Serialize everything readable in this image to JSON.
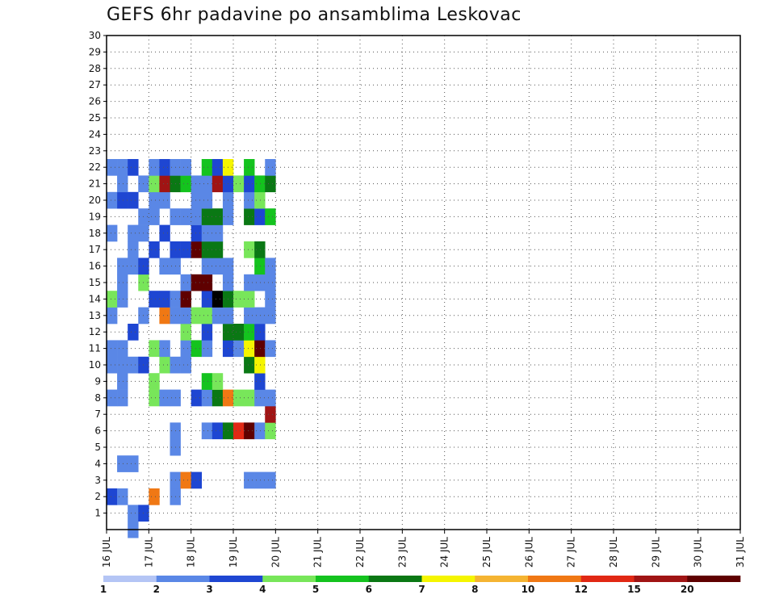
{
  "chart_data": {
    "type": "heatmap",
    "title": "GEFS 6hr padavine po ansamblima Leskovac",
    "xlabel": "",
    "ylabel": "",
    "x_ticks": [
      "16 JUL",
      "17 JUL",
      "18 JUL",
      "19 JUL",
      "20 JUL",
      "21 JUL",
      "22 JUL",
      "23 JUL",
      "24 JUL",
      "25 JUL",
      "26 JUL",
      "27 JUL",
      "28 JUL",
      "29 JUL",
      "30 JUL",
      "31 JUL"
    ],
    "x_range": [
      0,
      60
    ],
    "y_ticks": [
      1,
      2,
      3,
      4,
      5,
      6,
      7,
      8,
      9,
      10,
      11,
      12,
      13,
      14,
      15,
      16,
      17,
      18,
      19,
      20,
      21,
      22,
      23,
      24,
      25,
      26,
      27,
      28,
      29,
      30
    ],
    "y_range": [
      0,
      30
    ],
    "grid": true,
    "colorbar": {
      "labels": [
        "1",
        "2",
        "3",
        "4",
        "5",
        "6",
        "7",
        "8",
        "10",
        "12",
        "15",
        "20"
      ],
      "colors": [
        "#b4c5f5",
        "#5a87e6",
        "#1e46d2",
        "#78e65a",
        "#14c31e",
        "#0a7814",
        "#f5f500",
        "#f5b432",
        "#f07814",
        "#e12814",
        "#a01414",
        "#5f0000"
      ]
    },
    "cells": [
      [
        2,
        0,
        1
      ],
      [
        2,
        1,
        1
      ],
      [
        3,
        1,
        2
      ],
      [
        0,
        2,
        2
      ],
      [
        1,
        2,
        1
      ],
      [
        4,
        2,
        8
      ],
      [
        6,
        2,
        1
      ],
      [
        6,
        3,
        1
      ],
      [
        7,
        3,
        8
      ],
      [
        8,
        3,
        2
      ],
      [
        13,
        3,
        1
      ],
      [
        14,
        3,
        1
      ],
      [
        15,
        3,
        1
      ],
      [
        1,
        4,
        1
      ],
      [
        2,
        4,
        1
      ],
      [
        6,
        5,
        1
      ],
      [
        6,
        6,
        1
      ],
      [
        9,
        6,
        1
      ],
      [
        10,
        6,
        2
      ],
      [
        11,
        6,
        5
      ],
      [
        12,
        6,
        9
      ],
      [
        13,
        6,
        11
      ],
      [
        14,
        6,
        1
      ],
      [
        15,
        6,
        3
      ],
      [
        15,
        7,
        10
      ],
      [
        0,
        8,
        1
      ],
      [
        1,
        8,
        1
      ],
      [
        4,
        8,
        3
      ],
      [
        5,
        8,
        1
      ],
      [
        6,
        8,
        1
      ],
      [
        8,
        8,
        2
      ],
      [
        9,
        8,
        1
      ],
      [
        10,
        8,
        5
      ],
      [
        11,
        8,
        8
      ],
      [
        12,
        8,
        3
      ],
      [
        13,
        8,
        3
      ],
      [
        14,
        8,
        1
      ],
      [
        15,
        8,
        1
      ],
      [
        1,
        9,
        1
      ],
      [
        4,
        9,
        3
      ],
      [
        9,
        9,
        4
      ],
      [
        10,
        9,
        3
      ],
      [
        14,
        9,
        2
      ],
      [
        0,
        10,
        1
      ],
      [
        1,
        10,
        1
      ],
      [
        2,
        10,
        1
      ],
      [
        3,
        10,
        2
      ],
      [
        5,
        10,
        3
      ],
      [
        6,
        10,
        1
      ],
      [
        7,
        10,
        1
      ],
      [
        13,
        10,
        5
      ],
      [
        14,
        10,
        6
      ],
      [
        0,
        11,
        1
      ],
      [
        1,
        11,
        1
      ],
      [
        4,
        11,
        3
      ],
      [
        5,
        11,
        1
      ],
      [
        7,
        11,
        1
      ],
      [
        8,
        11,
        4
      ],
      [
        9,
        11,
        1
      ],
      [
        11,
        11,
        2
      ],
      [
        12,
        11,
        1
      ],
      [
        13,
        11,
        6
      ],
      [
        14,
        11,
        11
      ],
      [
        15,
        11,
        1
      ],
      [
        2,
        12,
        2
      ],
      [
        7,
        12,
        3
      ],
      [
        9,
        12,
        2
      ],
      [
        11,
        12,
        5
      ],
      [
        12,
        12,
        5
      ],
      [
        13,
        12,
        4
      ],
      [
        14,
        12,
        2
      ],
      [
        0,
        13,
        1
      ],
      [
        3,
        13,
        1
      ],
      [
        5,
        13,
        8
      ],
      [
        6,
        13,
        1
      ],
      [
        7,
        13,
        1
      ],
      [
        8,
        13,
        3
      ],
      [
        9,
        13,
        3
      ],
      [
        10,
        13,
        1
      ],
      [
        11,
        13,
        1
      ],
      [
        13,
        13,
        1
      ],
      [
        14,
        13,
        1
      ],
      [
        15,
        13,
        1
      ],
      [
        0,
        14,
        3
      ],
      [
        1,
        14,
        1
      ],
      [
        4,
        14,
        2
      ],
      [
        5,
        14,
        2
      ],
      [
        6,
        14,
        1
      ],
      [
        7,
        14,
        11
      ],
      [
        9,
        14,
        2
      ],
      [
        10,
        14,
        12
      ],
      [
        11,
        14,
        5
      ],
      [
        12,
        14,
        3
      ],
      [
        13,
        14,
        3
      ],
      [
        15,
        14,
        1
      ],
      [
        1,
        15,
        1
      ],
      [
        3,
        15,
        3
      ],
      [
        7,
        15,
        1
      ],
      [
        8,
        15,
        11
      ],
      [
        9,
        15,
        11
      ],
      [
        11,
        15,
        1
      ],
      [
        13,
        15,
        1
      ],
      [
        14,
        15,
        1
      ],
      [
        15,
        15,
        1
      ],
      [
        1,
        16,
        1
      ],
      [
        2,
        16,
        1
      ],
      [
        3,
        16,
        2
      ],
      [
        5,
        16,
        1
      ],
      [
        6,
        16,
        1
      ],
      [
        9,
        16,
        1
      ],
      [
        10,
        16,
        1
      ],
      [
        11,
        16,
        1
      ],
      [
        14,
        16,
        4
      ],
      [
        15,
        16,
        1
      ],
      [
        2,
        17,
        1
      ],
      [
        4,
        17,
        2
      ],
      [
        6,
        17,
        2
      ],
      [
        7,
        17,
        2
      ],
      [
        8,
        17,
        11
      ],
      [
        9,
        17,
        5
      ],
      [
        10,
        17,
        5
      ],
      [
        13,
        17,
        3
      ],
      [
        14,
        17,
        5
      ],
      [
        0,
        18,
        1
      ],
      [
        2,
        18,
        1
      ],
      [
        3,
        18,
        1
      ],
      [
        5,
        18,
        2
      ],
      [
        8,
        18,
        2
      ],
      [
        9,
        18,
        1
      ],
      [
        10,
        18,
        1
      ],
      [
        3,
        19,
        1
      ],
      [
        4,
        19,
        1
      ],
      [
        6,
        19,
        1
      ],
      [
        7,
        19,
        1
      ],
      [
        8,
        19,
        1
      ],
      [
        9,
        19,
        5
      ],
      [
        10,
        19,
        5
      ],
      [
        11,
        19,
        1
      ],
      [
        13,
        19,
        5
      ],
      [
        14,
        19,
        2
      ],
      [
        15,
        19,
        4
      ],
      [
        0,
        20,
        1
      ],
      [
        1,
        20,
        2
      ],
      [
        2,
        20,
        2
      ],
      [
        4,
        20,
        1
      ],
      [
        5,
        20,
        1
      ],
      [
        8,
        20,
        1
      ],
      [
        9,
        20,
        1
      ],
      [
        11,
        20,
        1
      ],
      [
        13,
        20,
        1
      ],
      [
        14,
        20,
        3
      ],
      [
        1,
        21,
        1
      ],
      [
        3,
        21,
        1
      ],
      [
        4,
        21,
        3
      ],
      [
        5,
        21,
        10
      ],
      [
        6,
        21,
        5
      ],
      [
        7,
        21,
        4
      ],
      [
        8,
        21,
        1
      ],
      [
        9,
        21,
        1
      ],
      [
        10,
        21,
        10
      ],
      [
        11,
        21,
        2
      ],
      [
        12,
        21,
        3
      ],
      [
        13,
        21,
        2
      ],
      [
        14,
        21,
        4
      ],
      [
        15,
        21,
        5
      ],
      [
        0,
        22,
        1
      ],
      [
        1,
        22,
        1
      ],
      [
        2,
        22,
        2
      ],
      [
        4,
        22,
        1
      ],
      [
        5,
        22,
        2
      ],
      [
        6,
        22,
        1
      ],
      [
        7,
        22,
        1
      ],
      [
        9,
        22,
        4
      ],
      [
        10,
        22,
        2
      ],
      [
        11,
        22,
        6
      ],
      [
        13,
        22,
        4
      ],
      [
        15,
        22,
        1
      ]
    ]
  }
}
